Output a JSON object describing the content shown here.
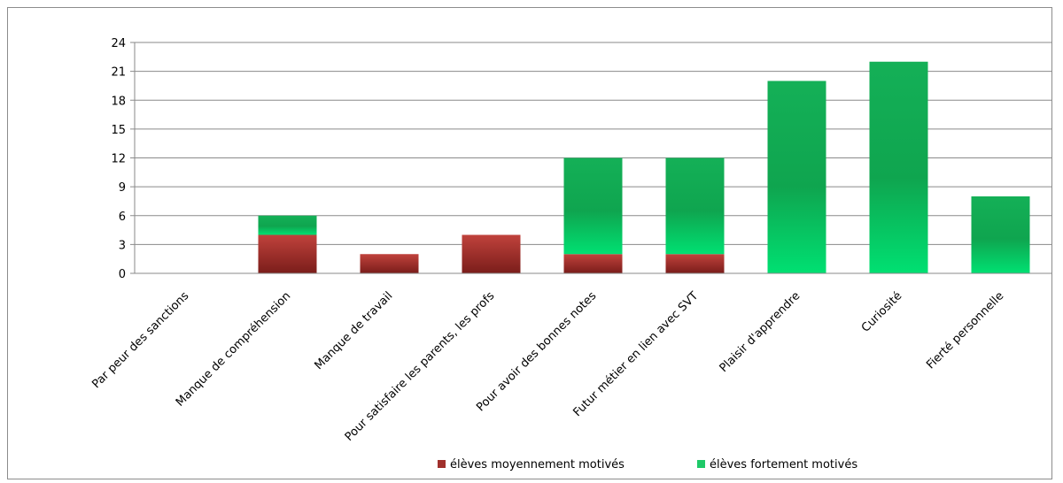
{
  "chart_data": {
    "type": "bar",
    "stacked": true,
    "title": "",
    "xlabel": "",
    "ylabel": "",
    "ylim": [
      0,
      24
    ],
    "yticks": [
      0,
      3,
      6,
      9,
      12,
      15,
      18,
      21,
      24
    ],
    "grid": true,
    "legend_position": "bottom",
    "categories": [
      "Par peur des sanctions",
      "Manque de compréhension",
      "Manque de travail",
      "Pour satisfaire les parents, les profs",
      "Pour avoir des bonnes notes",
      "Futur métier en lien avec SVT",
      "Plaisir d'apprendre",
      "Curiosité",
      "Fierté personnelle"
    ],
    "series": [
      {
        "name": "élèves moyennement motivés",
        "color": "#a0302c",
        "values": [
          0,
          4,
          2,
          4,
          2,
          2,
          0,
          0,
          0
        ]
      },
      {
        "name": "élèves fortement motivés",
        "color": "#1ec968",
        "values": [
          0,
          2,
          0,
          0,
          10,
          10,
          20,
          22,
          8
        ]
      }
    ]
  }
}
